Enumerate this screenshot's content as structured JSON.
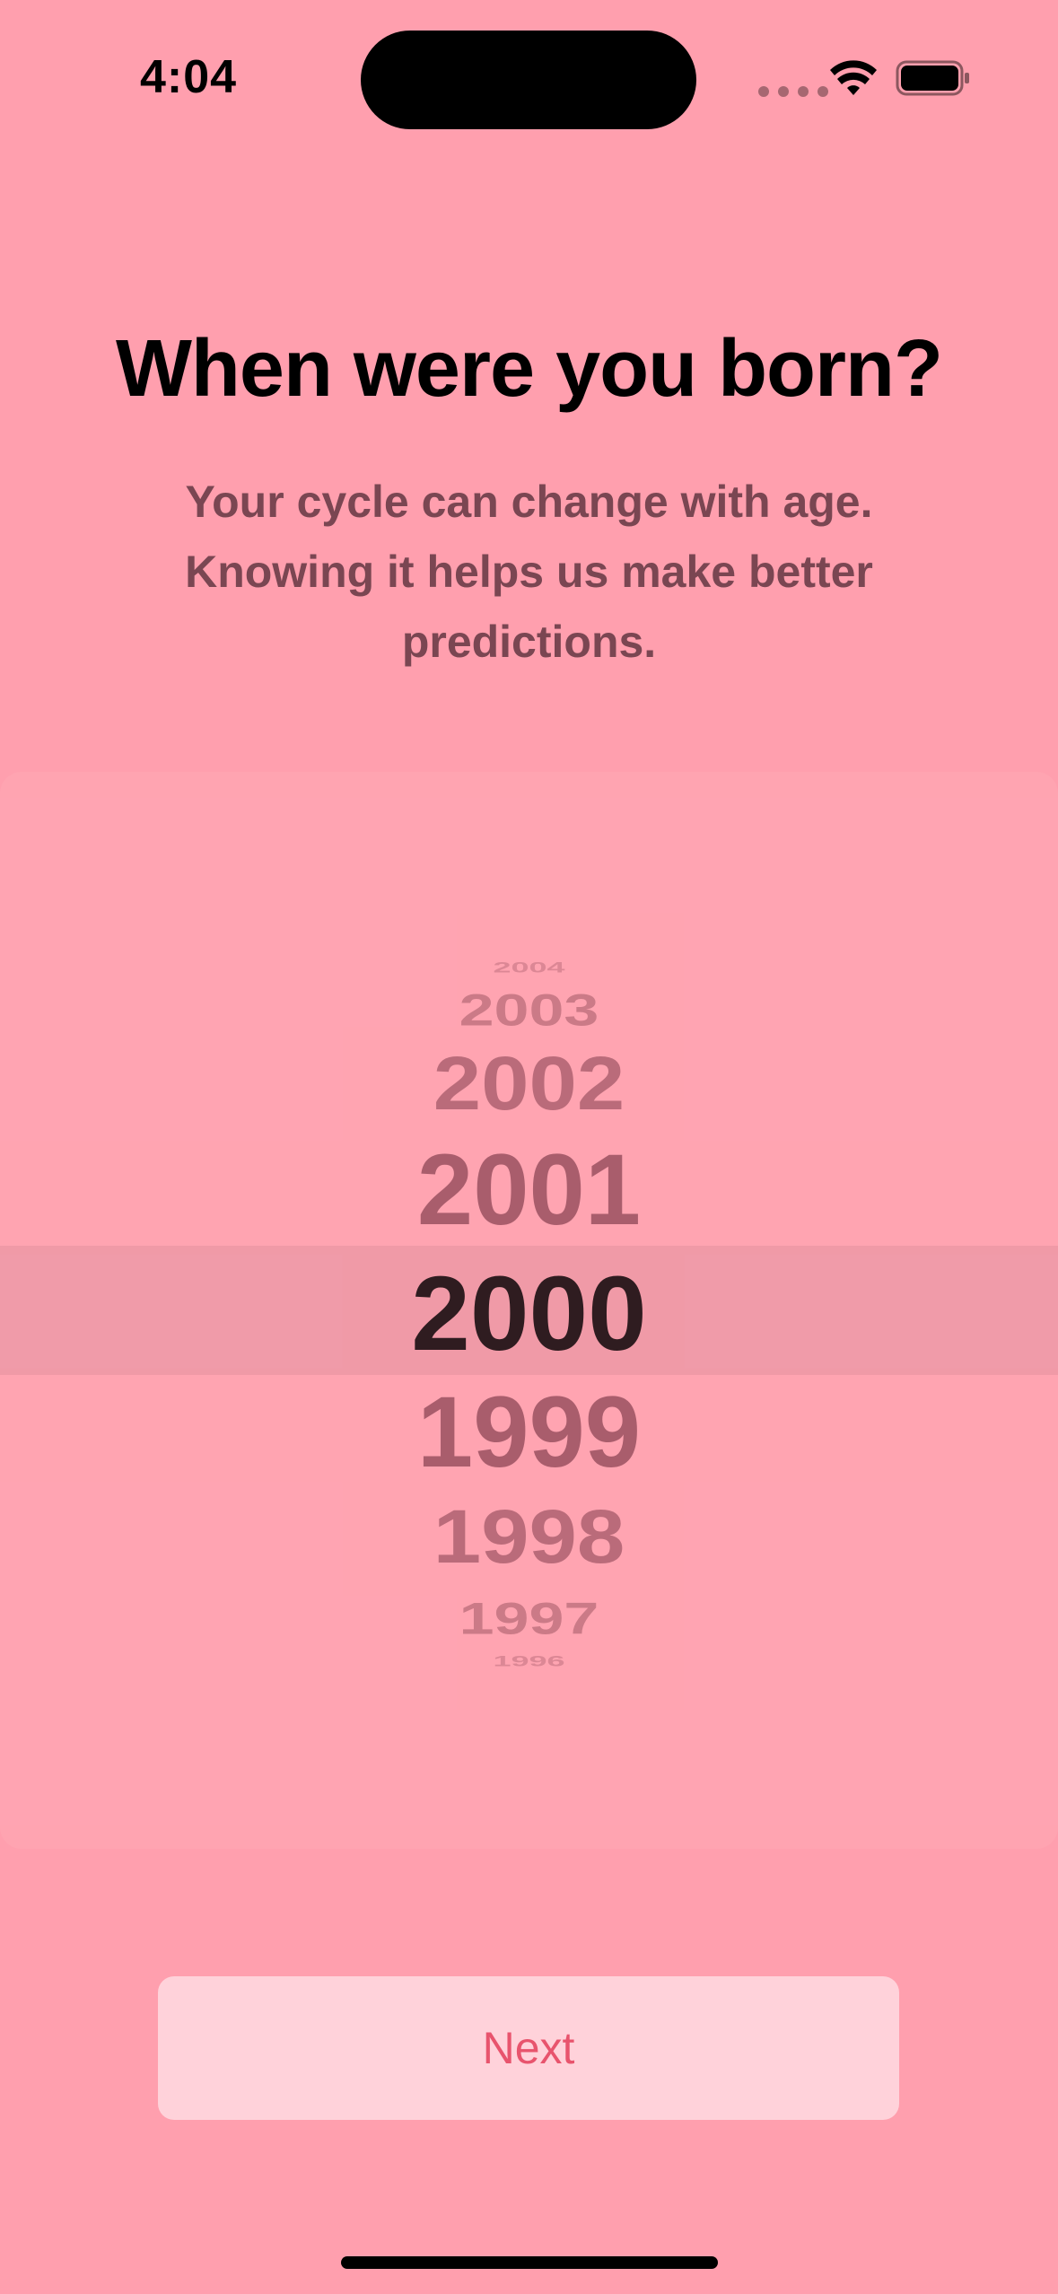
{
  "status_bar": {
    "time": "4:04",
    "icons": [
      "signal-dots-icon",
      "wifi-icon",
      "battery-icon"
    ]
  },
  "header": {
    "title": "When were you born?",
    "subtitle": "Your cycle can change with age. Knowing it helps us make better predictions."
  },
  "picker": {
    "selected": "2000",
    "items": [
      "2004",
      "2003",
      "2002",
      "2001",
      "2000",
      "1999",
      "1998",
      "1997",
      "1996"
    ]
  },
  "actions": {
    "next_label": "Next"
  },
  "colors": {
    "background": "#ff9fae",
    "subtitle": "#7a4652",
    "button_bg": "#ffd2da",
    "button_text": "#e8546d"
  }
}
